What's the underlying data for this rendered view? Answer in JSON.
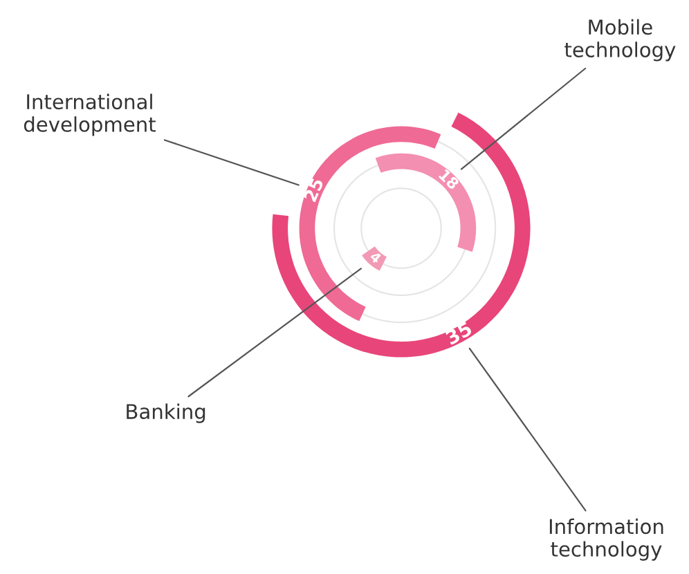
{
  "chart_data": {
    "type": "other",
    "categories": [
      "Banking",
      "Mobile technology",
      "International development",
      "Information technology"
    ],
    "values": [
      4,
      18,
      25,
      35
    ],
    "colors": [
      "#f29ab5",
      "#f38fb0",
      "#ef6a94",
      "#e8457a"
    ],
    "data_labels": true
  }
}
